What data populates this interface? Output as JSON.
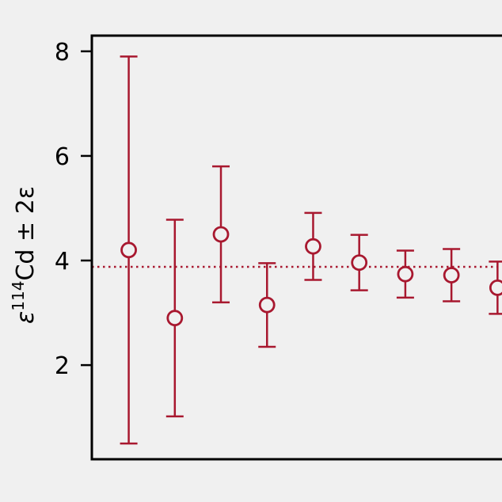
{
  "chart_data": {
    "type": "scatter",
    "ylabel_main": "ε",
    "ylabel_sup": "114",
    "ylabel_rest": "Cd ± 2ε",
    "ylim": [
      0.2,
      8.3
    ],
    "xlim": [
      0.2,
      9.2
    ],
    "yticks": [
      2,
      4,
      6,
      8
    ],
    "x_tick_labels_shown": false,
    "grid": false,
    "reference_line": {
      "y": 3.88,
      "style": "dotted"
    },
    "series": [
      {
        "points": [
          {
            "x": 1,
            "y": 4.2,
            "err": 3.7
          },
          {
            "x": 2,
            "y": 2.9,
            "err": 1.88
          },
          {
            "x": 3,
            "y": 4.5,
            "err": 1.3
          },
          {
            "x": 4,
            "y": 3.15,
            "err": 0.8
          },
          {
            "x": 5,
            "y": 4.27,
            "err": 0.64
          },
          {
            "x": 6,
            "y": 3.96,
            "err": 0.53
          },
          {
            "x": 7,
            "y": 3.74,
            "err": 0.45
          },
          {
            "x": 8,
            "y": 3.72,
            "err": 0.5
          },
          {
            "x": 9,
            "y": 3.48,
            "err": 0.5
          }
        ]
      }
    ],
    "colors": {
      "series": "#a8182f",
      "axis": "#000000",
      "background": "#f0f0f0"
    }
  }
}
